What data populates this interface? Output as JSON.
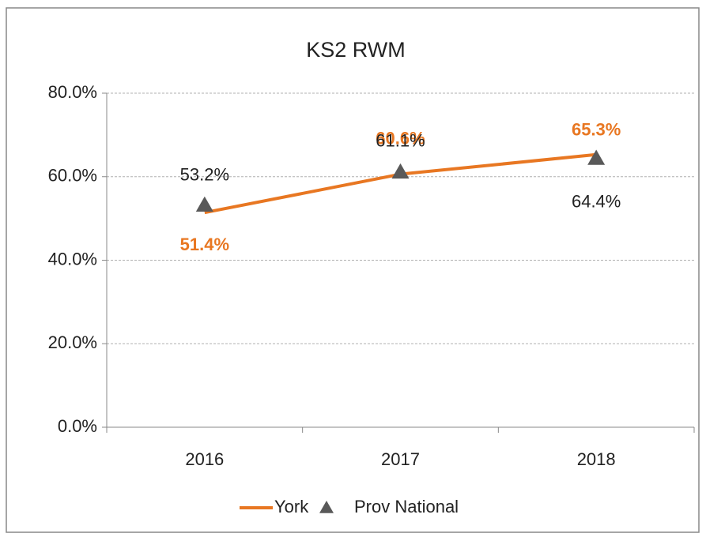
{
  "chart_data": {
    "type": "line",
    "title": "KS2 RWM",
    "categories": [
      "2016",
      "2017",
      "2018"
    ],
    "series": [
      {
        "name": "York",
        "color": "#e87722",
        "values": [
          51.4,
          60.6,
          65.3
        ],
        "value_labels": [
          "51.4%",
          "60.6%",
          "65.3%"
        ]
      },
      {
        "name": "Prov National",
        "color": "#595959",
        "marker": "triangle",
        "values": [
          53.2,
          61.1,
          64.4
        ],
        "value_labels": [
          "53.2%",
          "61.1%",
          "64.4%"
        ]
      }
    ],
    "ylim": [
      0,
      80
    ],
    "yticks": [
      {
        "value": 0,
        "label": "0.0%"
      },
      {
        "value": 20,
        "label": "20.0%"
      },
      {
        "value": 40,
        "label": "40.0%"
      },
      {
        "value": 60,
        "label": "60.0%"
      },
      {
        "value": 80,
        "label": "80.0%"
      }
    ],
    "grid": true,
    "legend": "bottom"
  }
}
